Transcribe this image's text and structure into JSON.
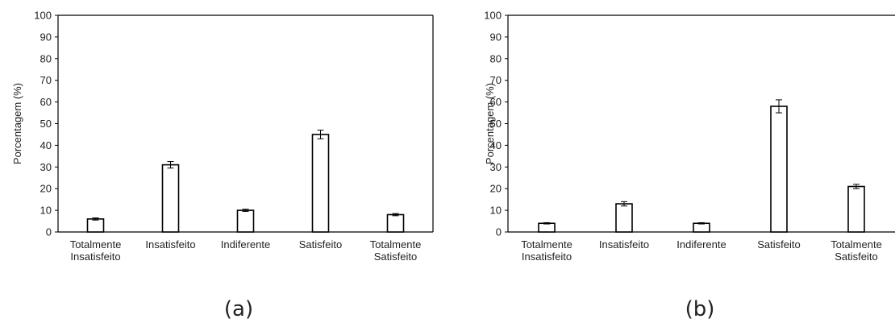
{
  "chart_data": [
    {
      "type": "bar",
      "panel_label": "(a)",
      "ylabel": "Porcentagem (%)",
      "ylim": [
        0,
        100
      ],
      "yticks": [
        0,
        10,
        20,
        30,
        40,
        50,
        60,
        70,
        80,
        90,
        100
      ],
      "grid": false,
      "categories": [
        [
          "Totalmente",
          "Insatisfeito"
        ],
        [
          "Insatisfeito"
        ],
        [
          "Indiferente"
        ],
        [
          "Satisfeito"
        ],
        [
          "Totalmente",
          "Satisfeito"
        ]
      ],
      "values": [
        6,
        31,
        10,
        45,
        8
      ],
      "errors": [
        0.5,
        1.5,
        0.5,
        2.0,
        0.5
      ],
      "colors": {
        "bar_fill": "#ffffff",
        "bar_stroke": "#000000"
      }
    },
    {
      "type": "bar",
      "panel_label": "(b)",
      "ylabel": "Porcentagem (%)",
      "ylim": [
        0,
        100
      ],
      "yticks": [
        0,
        10,
        20,
        30,
        40,
        50,
        60,
        70,
        80,
        90,
        100
      ],
      "grid": false,
      "categories": [
        [
          "Totalmente",
          "Insatisfeito"
        ],
        [
          "Insatisfeito"
        ],
        [
          "Indiferente"
        ],
        [
          "Satisfeito"
        ],
        [
          "Totalmente",
          "Satisfeito"
        ]
      ],
      "values": [
        4,
        13,
        4,
        58,
        21
      ],
      "errors": [
        0.3,
        1.0,
        0.3,
        3.0,
        1.0
      ],
      "colors": {
        "bar_fill": "#ffffff",
        "bar_stroke": "#000000"
      }
    }
  ]
}
